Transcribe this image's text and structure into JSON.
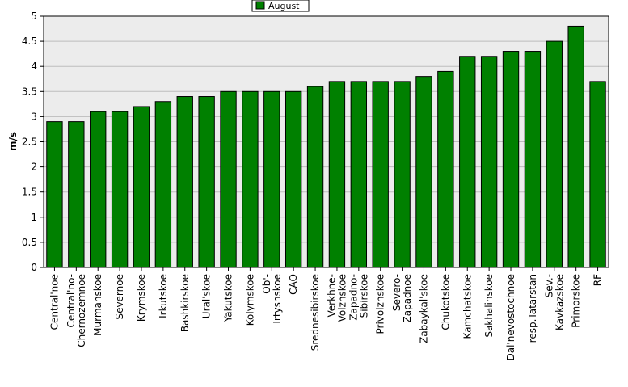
{
  "chart_data": {
    "type": "bar",
    "title": "",
    "xlabel": "",
    "ylabel": "m/s",
    "ylim": [
      0,
      5
    ],
    "yticks": [
      "0",
      "0.5",
      "1",
      "1.5",
      "2",
      "2.5",
      "3",
      "3.5",
      "4",
      "4.5",
      "5"
    ],
    "grid": true,
    "legend_position": "top-center",
    "categories": [
      "Central'noe",
      "Central'no-Chernozemnoe",
      "Murmanskoe",
      "Severnoe",
      "Krymskoe",
      "Irkutskoe",
      "Bashkirskoe",
      "Ural'skoe",
      "Yakutskoe",
      "Kolymskoe",
      "Ob'-Irtyshskoe",
      "CAO",
      "Srednesibirskoe",
      "Verkhne-Volzhskoe",
      "Zapadno-Sibirskoe",
      "Privolzhskoe",
      "Severo-Zapadnoe",
      "Zabaykal'skoe",
      "Chukotskoe",
      "Kamchatskoe",
      "Sakhalinskoe",
      "Dal'nevostochnoe",
      "resp.Tatarstan",
      "Sev.-Kavkazskoe",
      "Primorskoe",
      "RF"
    ],
    "tick_lines": [
      [
        "Central'noe"
      ],
      [
        "Central'no-",
        "Chernozemnoe"
      ],
      [
        "Murmanskoe"
      ],
      [
        "Severnoe"
      ],
      [
        "Krymskoe"
      ],
      [
        "Irkutskoe"
      ],
      [
        "Bashkirskoe"
      ],
      [
        "Ural'skoe"
      ],
      [
        "Yakutskoe"
      ],
      [
        "Kolymskoe"
      ],
      [
        "Ob'-",
        "Irtyshskoe"
      ],
      [
        "CAO"
      ],
      [
        "Srednesibirskoe"
      ],
      [
        "Verkhne-",
        "Volzhskoe"
      ],
      [
        "Zapadno-",
        "Sibirskoe"
      ],
      [
        "Privolzhskoe"
      ],
      [
        "Severo-",
        "Zapadnoe"
      ],
      [
        "Zabaykal'skoe"
      ],
      [
        "Chukotskoe"
      ],
      [
        "Kamchatskoe"
      ],
      [
        "Sakhalinskoe"
      ],
      [
        "Dal'nevostochnoe"
      ],
      [
        "resp.Tatarstan"
      ],
      [
        "Sev.-",
        "Kavkazskoe"
      ],
      [
        "Primorskoe"
      ],
      [
        "RF"
      ]
    ],
    "series": [
      {
        "name": "August",
        "color": "#008000",
        "values": [
          2.9,
          2.9,
          3.1,
          3.1,
          3.2,
          3.3,
          3.4,
          3.4,
          3.5,
          3.5,
          3.5,
          3.5,
          3.6,
          3.7,
          3.7,
          3.7,
          3.7,
          3.8,
          3.9,
          4.2,
          4.2,
          4.3,
          4.3,
          4.5,
          4.8,
          3.7
        ]
      }
    ]
  }
}
